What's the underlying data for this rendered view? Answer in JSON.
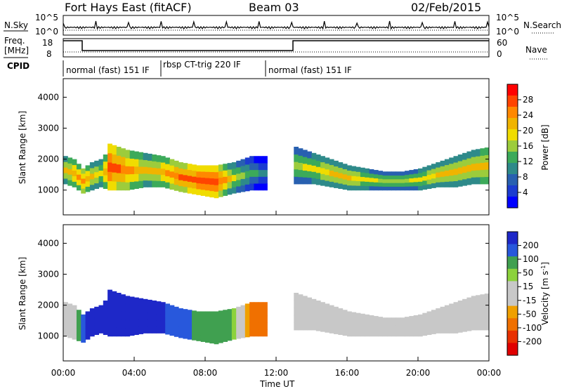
{
  "header": {
    "title": "Fort Hays East (fitACF)",
    "beam": "Beam 03",
    "date": "02/Feb/2015"
  },
  "top_panels": {
    "nsky_label": "N.Sky",
    "nsearch_label": "N.Search",
    "freq_label_1": "Freq.",
    "freq_label_2": "[MHz]",
    "nave_label": "Nave",
    "cpid_label": "CPID",
    "noise_ticks_left": [
      "10^5",
      "10^0"
    ],
    "noise_ticks_right": [
      "10^5",
      "10^0"
    ],
    "freq_ticks_left": [
      "18",
      "8"
    ],
    "freq_ticks_right": [
      "60",
      "0"
    ],
    "cpid_segments": [
      {
        "label": "normal (fast) 151 IF",
        "start_hour": 0.0,
        "end_hour": 5.3
      },
      {
        "label": "rbsp CT-trig 220 IF",
        "start_hour": 5.3,
        "end_hour": 11.8
      },
      {
        "label": "normal (fast) 151 IF",
        "start_hour": 11.8,
        "end_hour": 24.0
      }
    ]
  },
  "colorbars": {
    "power": {
      "label": "Power [dB]",
      "ticks": [
        "28",
        "24",
        "20",
        "16",
        "12",
        "8",
        "4"
      ],
      "colors": [
        "#ff0000",
        "#ff4400",
        "#ff8800",
        "#f0b400",
        "#f0dc00",
        "#9ccc3c",
        "#3caa5a",
        "#2e8a8a",
        "#2860b0",
        "#1c3cd0",
        "#0000ff"
      ]
    },
    "velocity": {
      "label": "Velocity [m s",
      "label_sup": "-1",
      "label_end": "]",
      "ticks": [
        "200",
        "100",
        "50",
        "15",
        "-15",
        "-50",
        "-100",
        "-200"
      ],
      "colors": [
        "#1e28c8",
        "#2858dc",
        "#40a050",
        "#8cd23c",
        "#c8c8c8",
        "#c8c8c8",
        "#f0a000",
        "#f07000",
        "#e83000",
        "#e00000"
      ]
    }
  },
  "chart_data": [
    {
      "type": "heatmap",
      "name_hint": "power",
      "ylabel": "Slant Range [km]",
      "yticks": [
        1000,
        2000,
        3000,
        4000
      ],
      "ylim": [
        200,
        4600
      ],
      "xticks": [
        "00:00",
        "04:00",
        "08:00",
        "12:00",
        "16:00",
        "20:00",
        "00:00"
      ],
      "xlim": [
        0,
        24
      ],
      "series": [
        {
          "segment": "early",
          "x": [
            0.0,
            0.5,
            1.0,
            1.5,
            2.0,
            2.5
          ],
          "range_low": [
            1200,
            1100,
            900,
            1000,
            1100,
            1000
          ],
          "range_high": [
            2100,
            2000,
            1700,
            1900,
            2000,
            2300
          ],
          "peak_power": [
            20,
            22,
            24,
            20,
            18,
            26
          ]
        },
        {
          "segment": "mid",
          "x": [
            2.5,
            3.5,
            4.5,
            5.5,
            6.5,
            7.5,
            8.5,
            9.5,
            10.5,
            11.3
          ],
          "range_low": [
            1000,
            1000,
            1100,
            1100,
            950,
            850,
            750,
            900,
            1000,
            1000
          ],
          "range_high": [
            2500,
            2300,
            2200,
            2100,
            1900,
            1800,
            1800,
            1900,
            2100,
            2100
          ],
          "peak_power": [
            28,
            24,
            20,
            22,
            26,
            28,
            28,
            18,
            12,
            8
          ]
        },
        {
          "segment": "late",
          "x": [
            13.0,
            14.0,
            15.0,
            16.0,
            17.0,
            18.0,
            19.0,
            20.0,
            21.0,
            22.0,
            23.0,
            24.0
          ],
          "range_low": [
            1200,
            1200,
            1100,
            1000,
            1000,
            1000,
            1000,
            1000,
            1100,
            1100,
            1200,
            1200
          ],
          "range_high": [
            2400,
            2200,
            2000,
            1800,
            1700,
            1600,
            1600,
            1700,
            1900,
            2100,
            2300,
            2400
          ],
          "peak_power": [
            16,
            18,
            20,
            20,
            18,
            16,
            16,
            18,
            20,
            20,
            20,
            22
          ]
        }
      ]
    },
    {
      "type": "heatmap",
      "name_hint": "velocity",
      "ylabel": "Slant Range [km]",
      "xlabel": "Time UT",
      "yticks": [
        1000,
        2000,
        3000,
        4000
      ],
      "ylim": [
        200,
        4600
      ],
      "xticks": [
        "00:00",
        "04:00",
        "08:00",
        "12:00",
        "16:00",
        "20:00",
        "00:00"
      ],
      "xlim": [
        0,
        24
      ],
      "series": [
        {
          "segment": "early",
          "x": [
            0.0,
            0.5,
            1.0,
            1.5,
            2.0,
            2.5
          ],
          "range_low": [
            1000,
            900,
            800,
            1000,
            1100,
            1000
          ],
          "range_high": [
            2100,
            2000,
            1700,
            1900,
            2000,
            2300
          ],
          "velocity": [
            -10,
            0,
            150,
            160,
            170,
            200
          ]
        },
        {
          "segment": "mid",
          "x": [
            2.5,
            3.5,
            4.5,
            5.5,
            6.5,
            7.5,
            8.5,
            9.5,
            10.5,
            11.3
          ],
          "range_low": [
            1000,
            1000,
            1100,
            1100,
            950,
            850,
            750,
            900,
            1000,
            1000
          ],
          "range_high": [
            2500,
            2300,
            2200,
            2100,
            1900,
            1800,
            1800,
            1900,
            2100,
            2100
          ],
          "velocity": [
            200,
            180,
            170,
            160,
            120,
            60,
            40,
            30,
            -60,
            -80
          ]
        },
        {
          "segment": "late",
          "x": [
            13.0,
            14.0,
            15.0,
            16.0,
            17.0,
            18.0,
            19.0,
            20.0,
            21.0,
            22.0,
            23.0,
            24.0
          ],
          "range_low": [
            1200,
            1200,
            1100,
            1000,
            1000,
            1000,
            1000,
            1000,
            1100,
            1100,
            1200,
            1200
          ],
          "range_high": [
            2400,
            2200,
            2000,
            1800,
            1700,
            1600,
            1600,
            1700,
            1900,
            2100,
            2300,
            2400
          ],
          "velocity": [
            0,
            0,
            0,
            0,
            0,
            0,
            0,
            0,
            0,
            0,
            0,
            0
          ]
        }
      ]
    }
  ]
}
